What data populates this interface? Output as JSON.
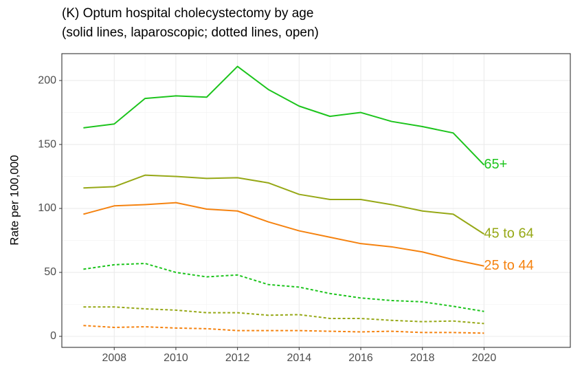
{
  "chart_data": {
    "type": "line",
    "title": "(K) Optum hospital cholecystectomy by age",
    "subtitle": "(solid lines, laparoscopic; dotted lines, open)",
    "y_label": "Rate per 100,000",
    "x": [
      2007,
      2008,
      2009,
      2010,
      2011,
      2012,
      2013,
      2014,
      2015,
      2016,
      2017,
      2018,
      2019,
      2020
    ],
    "xlim": [
      2006.3,
      2022.8
    ],
    "xticks": [
      2008,
      2010,
      2012,
      2014,
      2016,
      2018,
      2020
    ],
    "ylim": [
      -8.6,
      221
    ],
    "yticks": [
      0,
      50,
      100,
      150,
      200
    ],
    "grid": true,
    "series": [
      {
        "name": "65+",
        "color": "#1cc41c",
        "dash": "solid",
        "values": [
          163,
          166,
          186,
          188,
          187,
          211,
          193,
          180,
          172,
          175,
          168,
          164,
          159,
          134
        ]
      },
      {
        "name": "45 to 64",
        "color": "#96a816",
        "dash": "solid",
        "values": [
          116,
          117,
          126,
          125,
          123.5,
          124,
          120,
          111,
          107,
          107,
          103,
          98,
          95.5,
          80
        ]
      },
      {
        "name": "25 to 44",
        "color": "#f5820f",
        "dash": "solid",
        "values": [
          95.5,
          102,
          103,
          104.5,
          99.5,
          98,
          89.5,
          82.5,
          77.5,
          72.5,
          70,
          66,
          60,
          55
        ]
      },
      {
        "color": "#1cc41c",
        "dash": "dotted",
        "values": [
          52.5,
          56,
          57,
          50,
          46.5,
          48,
          40.5,
          38.5,
          33.5,
          30,
          28,
          27,
          23.5,
          19.5
        ]
      },
      {
        "color": "#96a816",
        "dash": "dotted",
        "values": [
          23,
          23,
          21.5,
          20.5,
          18.5,
          18.5,
          16.5,
          17,
          14,
          14,
          12.5,
          11.5,
          12,
          10
        ]
      },
      {
        "color": "#f5820f",
        "dash": "dotted",
        "values": [
          8.5,
          7,
          7.5,
          6.5,
          6,
          4.5,
          4.5,
          4.5,
          4,
          3.5,
          4,
          3,
          3,
          2.5
        ]
      }
    ]
  }
}
